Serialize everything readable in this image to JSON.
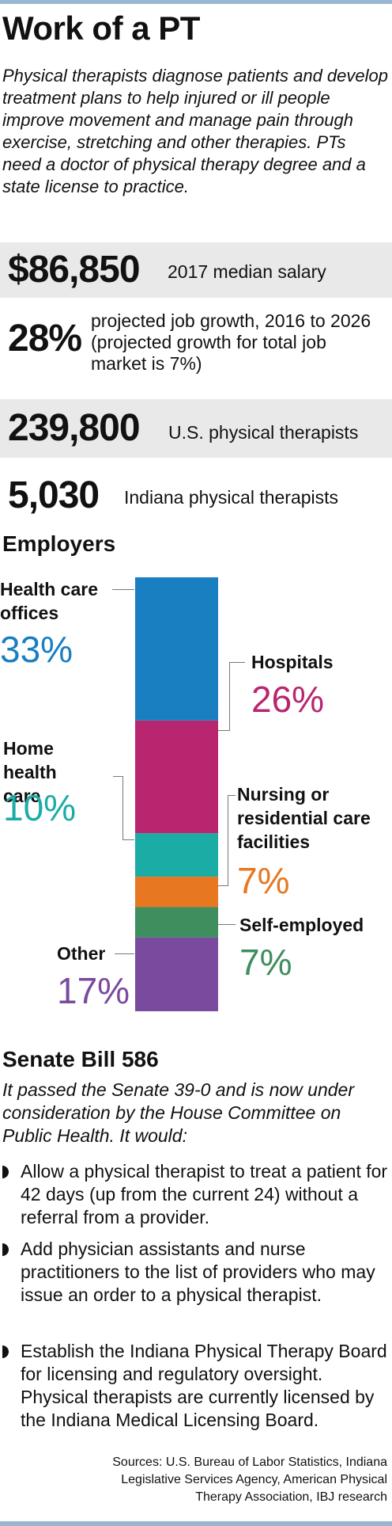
{
  "title": "Work of a PT",
  "intro": "Physical therapists diagnose patients and develop treatment plans to help injured or ill people improve movement and manage pain through exercise, stretching and other therapies. PTs need a doctor of physical therapy degree and a state license to practice.",
  "stats": [
    {
      "value": "$86,850",
      "label": "2017 median salary"
    },
    {
      "value": "28%",
      "label": "projected job growth, 2016 to 2026 (projected growth for total job market is 7%)"
    },
    {
      "value": "239,800",
      "label": "U.S. physical therapists"
    },
    {
      "value": "5,030",
      "label": "Indiana physical therapists"
    }
  ],
  "employers_heading": "Employers",
  "chart_data": {
    "type": "bar",
    "stacked": true,
    "unit": "%",
    "series": [
      {
        "name": "Health care offices",
        "value": 33,
        "label": "33%",
        "color": "#1a7fc1"
      },
      {
        "name": "Hospitals",
        "value": 26,
        "label": "26%",
        "color": "#b82670"
      },
      {
        "name": "Home health care",
        "value": 10,
        "label": "10%",
        "color": "#1aaca5"
      },
      {
        "name": "Nursing or residential care facilities",
        "value": 7,
        "label": "7%",
        "color": "#e87722"
      },
      {
        "name": "Self-employed",
        "value": 7,
        "label": "7%",
        "color": "#3e8e5e"
      },
      {
        "name": "Other",
        "value": 17,
        "label": "17%",
        "color": "#7a4a9f"
      }
    ]
  },
  "senate_heading": "Senate Bill 586",
  "senate_intro": "It passed the Senate 39-0 and is now under consideration by the House Committee on Public Health. It would:",
  "bullets": [
    "Allow a physical therapist to treat a patient for 42 days (up from the current 24) without a referral from a provider.",
    "Add physician assistants and nurse practitioners to the list of providers who may issue an order to a physical therapist.",
    "Establish the Indiana Physical Therapy Board for licensing and regulatory oversight. Physical therapists are currently licensed by the Indiana Medical Licensing Board."
  ],
  "sources": "Sources: U.S. Bureau of Labor Statistics, Indiana Legislative Services Agency, American Physical Therapy Association, IBJ research"
}
